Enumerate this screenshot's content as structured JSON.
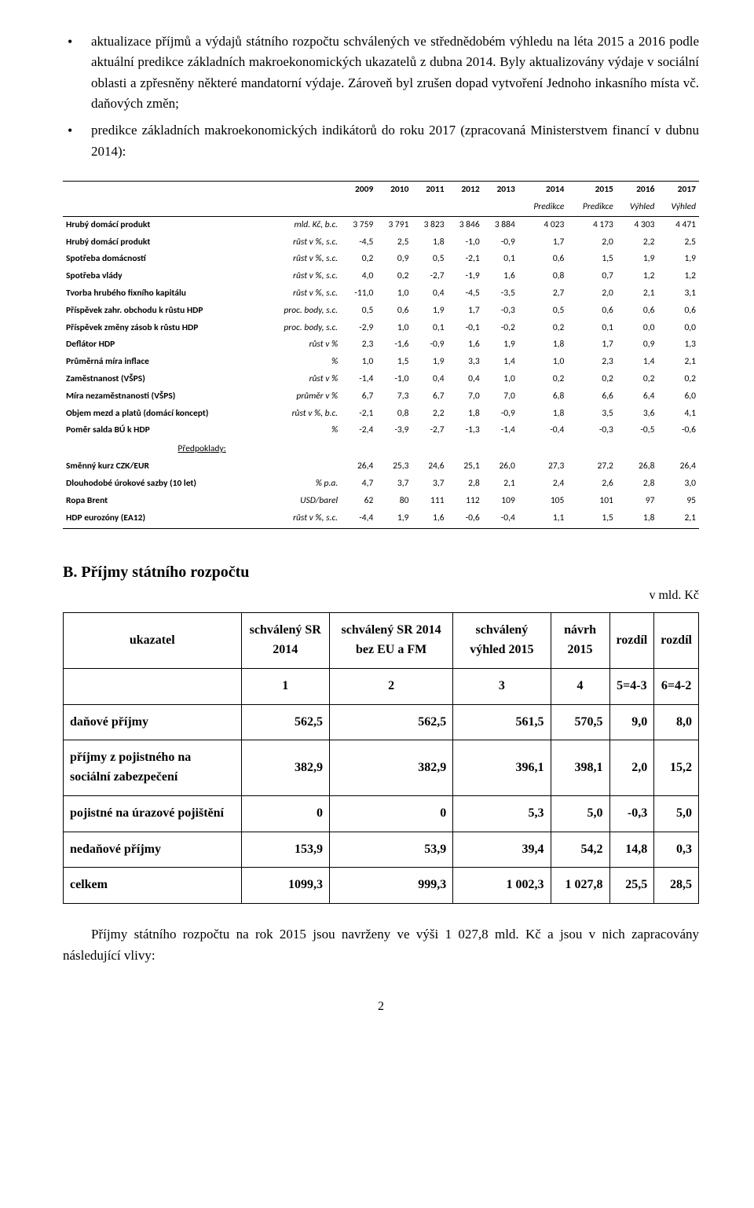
{
  "bullets": [
    "aktualizace příjmů a výdajů státního rozpočtu schválených ve střednědobém výhledu na léta 2015 a 2016 podle aktuální predikce základních makroekonomických ukazatelů z dubna 2014. Byly aktualizovány výdaje v sociální oblasti a zpřesněny některé mandatorní výdaje. Zároveň byl zrušen dopad vytvoření Jednoho inkasního místa vč. daňových změn;",
    "predikce základních makroekonomických indikátorů do roku 2017 (zpracovaná Ministerstvem financí v dubnu 2014):"
  ],
  "macro": {
    "years": [
      "2009",
      "2010",
      "2011",
      "2012",
      "2013",
      "2014",
      "2015",
      "2016",
      "2017"
    ],
    "subhead": [
      "",
      "",
      "",
      "",
      "",
      "Predikce",
      "Predikce",
      "Výhled",
      "Výhled"
    ],
    "rows": [
      {
        "label": "Hrubý domácí produkt",
        "unit": "mld. Kč, b.c.",
        "vals": [
          "3 759",
          "3 791",
          "3 823",
          "3 846",
          "3 884",
          "4 023",
          "4 173",
          "4 303",
          "4 471"
        ]
      },
      {
        "label": "Hrubý domácí produkt",
        "unit": "růst v %, s.c.",
        "vals": [
          "-4,5",
          "2,5",
          "1,8",
          "-1,0",
          "-0,9",
          "1,7",
          "2,0",
          "2,2",
          "2,5"
        ]
      },
      {
        "label": "Spotřeba domácností",
        "unit": "růst v %, s.c.",
        "vals": [
          "0,2",
          "0,9",
          "0,5",
          "-2,1",
          "0,1",
          "0,6",
          "1,5",
          "1,9",
          "1,9"
        ]
      },
      {
        "label": "Spotřeba vlády",
        "unit": "růst v %, s.c.",
        "vals": [
          "4,0",
          "0,2",
          "-2,7",
          "-1,9",
          "1,6",
          "0,8",
          "0,7",
          "1,2",
          "1,2"
        ]
      },
      {
        "label": "Tvorba hrubého fixního kapitálu",
        "unit": "růst v %, s.c.",
        "vals": [
          "-11,0",
          "1,0",
          "0,4",
          "-4,5",
          "-3,5",
          "2,7",
          "2,0",
          "2,1",
          "3,1"
        ]
      },
      {
        "label": "Příspěvek zahr. obchodu k růstu HDP",
        "unit": "proc. body, s.c.",
        "vals": [
          "0,5",
          "0,6",
          "1,9",
          "1,7",
          "-0,3",
          "0,5",
          "0,6",
          "0,6",
          "0,6"
        ]
      },
      {
        "label": "Příspěvek změny zásob k růstu HDP",
        "unit": "proc. body, s.c.",
        "vals": [
          "-2,9",
          "1,0",
          "0,1",
          "-0,1",
          "-0,2",
          "0,2",
          "0,1",
          "0,0",
          "0,0"
        ]
      },
      {
        "label": "Deflátor HDP",
        "unit": "růst v %",
        "vals": [
          "2,3",
          "-1,6",
          "-0,9",
          "1,6",
          "1,9",
          "1,8",
          "1,7",
          "0,9",
          "1,3"
        ]
      },
      {
        "label": "Průměrná míra inflace",
        "unit": "%",
        "vals": [
          "1,0",
          "1,5",
          "1,9",
          "3,3",
          "1,4",
          "1,0",
          "2,3",
          "1,4",
          "2,1"
        ]
      },
      {
        "label": "Zaměstnanost (VŠPS)",
        "unit": "růst v %",
        "vals": [
          "-1,4",
          "-1,0",
          "0,4",
          "0,4",
          "1,0",
          "0,2",
          "0,2",
          "0,2",
          "0,2"
        ]
      },
      {
        "label": "Míra nezaměstnanosti (VŠPS)",
        "unit": "průměr v %",
        "vals": [
          "6,7",
          "7,3",
          "6,7",
          "7,0",
          "7,0",
          "6,8",
          "6,6",
          "6,4",
          "6,0"
        ]
      },
      {
        "label": "Objem mezd a platů (domácí koncept)",
        "unit": "růst v %, b.c.",
        "vals": [
          "-2,1",
          "0,8",
          "2,2",
          "1,8",
          "-0,9",
          "1,8",
          "3,5",
          "3,6",
          "4,1"
        ]
      },
      {
        "label": "Poměr salda BÚ k HDP",
        "unit": "%",
        "vals": [
          "-2,4",
          "-3,9",
          "-2,7",
          "-1,3",
          "-1,4",
          "-0,4",
          "-0,3",
          "-0,5",
          "-0,6"
        ]
      }
    ],
    "assumptions_label": "Předpoklady:",
    "assumptions": [
      {
        "label": "Směnný kurz CZK/EUR",
        "unit": "",
        "vals": [
          "26,4",
          "25,3",
          "24,6",
          "25,1",
          "26,0",
          "27,3",
          "27,2",
          "26,8",
          "26,4"
        ]
      },
      {
        "label": "Dlouhodobé úrokové sazby (10 let)",
        "unit": "% p.a.",
        "vals": [
          "4,7",
          "3,7",
          "3,7",
          "2,8",
          "2,1",
          "2,4",
          "2,6",
          "2,8",
          "3,0"
        ]
      },
      {
        "label": "Ropa Brent",
        "unit": "USD/barel",
        "vals": [
          "62",
          "80",
          "111",
          "112",
          "109",
          "105",
          "101",
          "97",
          "95"
        ]
      },
      {
        "label": "HDP eurozóny (EA12)",
        "unit": "růst v %, s.c.",
        "vals": [
          "-4,4",
          "1,9",
          "1,6",
          "-0,6",
          "-0,4",
          "1,1",
          "1,5",
          "1,8",
          "2,1"
        ]
      }
    ]
  },
  "sectionB": {
    "title": "B. Příjmy státního rozpočtu",
    "unit": "v mld. Kč",
    "headers": [
      "ukazatel",
      "schválený SR 2014",
      "schválený SR 2014 bez EU a FM",
      "schválený výhled 2015",
      "návrh 2015",
      "rozdíl",
      "rozdíl"
    ],
    "index_row": [
      "",
      "1",
      "2",
      "3",
      "4",
      "5=4-3",
      "6=4-2"
    ],
    "rows": [
      {
        "label": "daňové příjmy",
        "vals": [
          "562,5",
          "562,5",
          "561,5",
          "570,5",
          "9,0",
          "8,0"
        ]
      },
      {
        "label": "příjmy z pojistného na sociální zabezpečení",
        "vals": [
          "382,9",
          "382,9",
          "396,1",
          "398,1",
          "2,0",
          "15,2"
        ]
      },
      {
        "label": "pojistné na úrazové pojištění",
        "vals": [
          "0",
          "0",
          "5,3",
          "5,0",
          "-0,3",
          "5,0"
        ]
      },
      {
        "label": "nedaňové příjmy",
        "vals": [
          "153,9",
          "53,9",
          "39,4",
          "54,2",
          "14,8",
          "0,3"
        ]
      },
      {
        "label": "celkem",
        "vals": [
          "1099,3",
          "999,3",
          "1 002,3",
          "1 027,8",
          "25,5",
          "28,5"
        ]
      }
    ]
  },
  "closing": "Příjmy státního rozpočtu na rok 2015 jsou navrženy ve výši 1 027,8 mld. Kč a jsou v nich zapracovány následující vlivy:",
  "pagenum": "2"
}
